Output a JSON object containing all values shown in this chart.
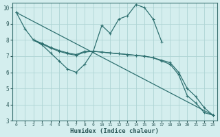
{
  "xlabel": "Humidex (Indice chaleur)",
  "ylabel": "",
  "xlim": [
    -0.5,
    23.5
  ],
  "ylim": [
    3,
    10.3
  ],
  "bg_color": "#d4eeee",
  "grid_color": "#aed4d4",
  "line_color": "#2e7070",
  "lines_data": [
    {
      "x": [
        0,
        1,
        2,
        3,
        4,
        5,
        6,
        7,
        8,
        9,
        10,
        11,
        12,
        13,
        14,
        15,
        16,
        17
      ],
      "y": [
        9.7,
        8.7,
        8.0,
        7.7,
        7.2,
        6.7,
        6.2,
        6.0,
        6.5,
        7.3,
        8.9,
        8.4,
        9.3,
        9.5,
        10.2,
        10.0,
        9.3,
        7.9
      ]
    },
    {
      "x": [
        0,
        23
      ],
      "y": [
        9.7,
        3.35
      ]
    },
    {
      "x": [
        2,
        3,
        4,
        5,
        6,
        7,
        8,
        9,
        10,
        11,
        12,
        13,
        14,
        15,
        16,
        17,
        18,
        19,
        20,
        21,
        22,
        23
      ],
      "y": [
        8.0,
        7.8,
        7.55,
        7.35,
        7.2,
        7.1,
        7.3,
        7.3,
        7.25,
        7.2,
        7.15,
        7.1,
        7.05,
        7.0,
        6.9,
        6.7,
        6.5,
        5.85,
        4.55,
        4.1,
        3.5,
        3.35
      ]
    },
    {
      "x": [
        2,
        3,
        4,
        5,
        6,
        7,
        8,
        9,
        10,
        11,
        12,
        13,
        14,
        15,
        16,
        17,
        18,
        19,
        20,
        21,
        22,
        23
      ],
      "y": [
        8.0,
        7.75,
        7.5,
        7.3,
        7.15,
        7.05,
        7.25,
        7.3,
        7.25,
        7.2,
        7.15,
        7.1,
        7.05,
        7.0,
        6.9,
        6.75,
        6.6,
        6.0,
        5.0,
        4.5,
        3.8,
        3.35
      ]
    }
  ],
  "xticks": [
    0,
    1,
    2,
    3,
    4,
    5,
    6,
    7,
    8,
    9,
    10,
    11,
    12,
    13,
    14,
    15,
    16,
    17,
    18,
    19,
    20,
    21,
    22,
    23
  ],
  "yticks": [
    3,
    4,
    5,
    6,
    7,
    8,
    9,
    10
  ]
}
